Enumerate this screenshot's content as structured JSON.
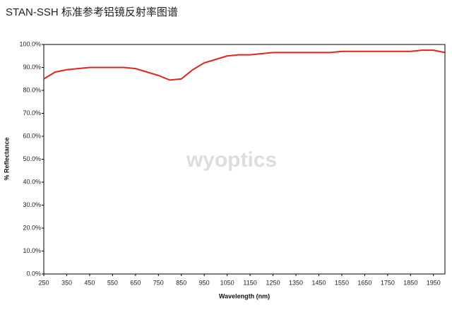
{
  "chart_data": {
    "type": "line",
    "title": "STAN-SSH 标准参考铝镜反射率图谱",
    "watermark": "wyoptics",
    "x_label": "Wavelength (nm)",
    "y_label": "% Reflectance",
    "x": [
      250,
      300,
      350,
      400,
      450,
      500,
      550,
      600,
      650,
      700,
      750,
      800,
      850,
      900,
      950,
      1000,
      1050,
      1100,
      1150,
      1200,
      1250,
      1300,
      1350,
      1400,
      1450,
      1500,
      1550,
      1600,
      1650,
      1700,
      1750,
      1800,
      1850,
      1900,
      1950,
      2000
    ],
    "series": [
      {
        "name": "Reflectance",
        "color": "#e3241b",
        "values": [
          85,
          88,
          89,
          89.5,
          90,
          90,
          90,
          90,
          89.5,
          88,
          86.5,
          84.5,
          85,
          89,
          92,
          93.5,
          95,
          95.5,
          95.5,
          96,
          96.5,
          96.5,
          96.5,
          96.5,
          96.5,
          96.5,
          97,
          97,
          97,
          97,
          97,
          97,
          97,
          97.5,
          97.5,
          96.5
        ]
      }
    ],
    "xlim": [
      250,
      2000
    ],
    "xticks": [
      250,
      350,
      450,
      550,
      650,
      750,
      850,
      950,
      1050,
      1150,
      1250,
      1350,
      1450,
      1550,
      1650,
      1750,
      1850,
      1950
    ],
    "ylim": [
      0,
      100
    ],
    "yticks": [
      {
        "value": 0,
        "label": "0.0%"
      },
      {
        "value": 10,
        "label": "10.0%"
      },
      {
        "value": 20,
        "label": "20.0%"
      },
      {
        "value": 30,
        "label": "30.0%"
      },
      {
        "value": 40,
        "label": "40.0%"
      },
      {
        "value": 50,
        "label": "50.0%"
      },
      {
        "value": 60,
        "label": "60.0%"
      },
      {
        "value": 70,
        "label": "70.0%"
      },
      {
        "value": 80,
        "label": "80.0%"
      },
      {
        "value": 90,
        "label": "90.0%"
      },
      {
        "value": 100,
        "label": "100.0%"
      }
    ],
    "grid": false
  }
}
